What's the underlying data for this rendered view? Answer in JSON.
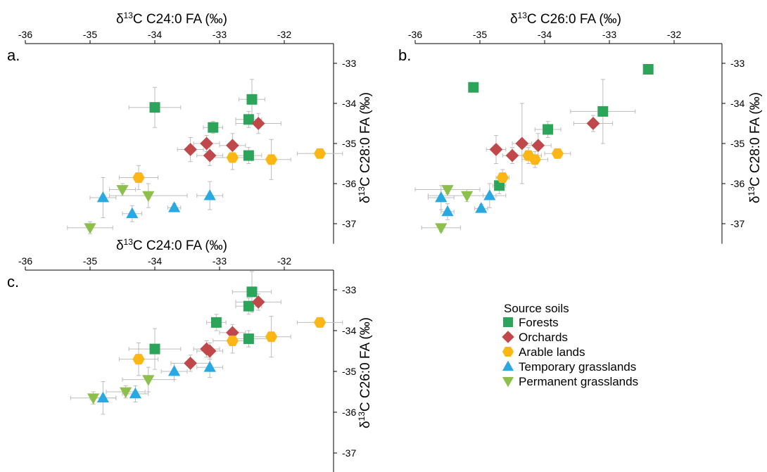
{
  "colors": {
    "Forests": "#2ca55a",
    "Orchards": "#c0484a",
    "Arable lands": "#fcb714",
    "Temporary grasslands": "#29a9e1",
    "Permanent grasslands": "#8dc04a",
    "errorbar": "#bdbdbd",
    "axis": "#000000"
  },
  "legend": {
    "title": "Source soils",
    "items": [
      {
        "label": "Forests",
        "marker": "square"
      },
      {
        "label": "Orchards",
        "marker": "diamond"
      },
      {
        "label": "Arable lands",
        "marker": "hexagon"
      },
      {
        "label": "Temporary grasslands",
        "marker": "triangle-up"
      },
      {
        "label": "Permanent grasslands",
        "marker": "triangle-down"
      }
    ]
  },
  "chart_data": [
    {
      "panel": "a.",
      "type": "scatter",
      "xlabel": "δ13C C24:0 FA (‰)",
      "ylabel": "δ13C C28:0 FA (‰)",
      "xlim": [
        -36,
        -31.1
      ],
      "ylim": [
        -37.5,
        -32.6
      ],
      "xticks": [
        -36,
        -35,
        -34,
        -33,
        -32
      ],
      "yticks": [
        -33,
        -34,
        -35,
        -36,
        -37
      ],
      "x_axis_position": "top",
      "y_axis_position": "right",
      "series": [
        {
          "name": "Forests",
          "points": [
            {
              "x": -34.0,
              "y": -34.1,
              "xerr": 0.4,
              "yerr": 0.5
            },
            {
              "x": -32.5,
              "y": -33.9,
              "xerr": 0.2,
              "yerr": 0.5
            },
            {
              "x": -32.55,
              "y": -34.4,
              "xerr": 0.2,
              "yerr": 0.2
            },
            {
              "x": -33.1,
              "y": -34.6,
              "xerr": 0.15,
              "yerr": 0.15
            },
            {
              "x": -32.55,
              "y": -35.3,
              "xerr": 0.2,
              "yerr": 0.2
            }
          ]
        },
        {
          "name": "Orchards",
          "points": [
            {
              "x": -32.4,
              "y": -34.5,
              "xerr": 0.35,
              "yerr": 0.25
            },
            {
              "x": -33.45,
              "y": -35.15,
              "xerr": 0.2,
              "yerr": 0.3
            },
            {
              "x": -33.2,
              "y": -35.0,
              "xerr": 0.2,
              "yerr": 0.2
            },
            {
              "x": -33.15,
              "y": -35.3,
              "xerr": 0.2,
              "yerr": 0.25
            },
            {
              "x": -32.8,
              "y": -35.05,
              "xerr": 0.2,
              "yerr": 0.3
            }
          ]
        },
        {
          "name": "Arable lands",
          "points": [
            {
              "x": -34.25,
              "y": -35.85,
              "xerr": 0.3,
              "yerr": 0.3
            },
            {
              "x": -32.8,
              "y": -35.35,
              "xerr": 0.3,
              "yerr": 0.3
            },
            {
              "x": -32.2,
              "y": -35.4,
              "xerr": 0.3,
              "yerr": 0.5
            },
            {
              "x": -31.45,
              "y": -35.25,
              "xerr": 0.35,
              "yerr": 0.1
            }
          ]
        },
        {
          "name": "Temporary grasslands",
          "points": [
            {
              "x": -34.8,
              "y": -36.35,
              "xerr": 0.2,
              "yerr": 0.5
            },
            {
              "x": -34.35,
              "y": -36.75,
              "xerr": 0.15,
              "yerr": 0.2
            },
            {
              "x": -33.7,
              "y": -36.6,
              "xerr": 0.1,
              "yerr": 0.1
            },
            {
              "x": -33.15,
              "y": -36.3,
              "xerr": 0.2,
              "yerr": 0.35
            }
          ]
        },
        {
          "name": "Permanent grasslands",
          "points": [
            {
              "x": -35.0,
              "y": -37.1,
              "xerr": 0.35,
              "yerr": 0.15
            },
            {
              "x": -34.5,
              "y": -36.15,
              "xerr": 0.2,
              "yerr": 0.15
            },
            {
              "x": -34.1,
              "y": -36.3,
              "xerr": 0.6,
              "yerr": 0.3
            }
          ]
        }
      ]
    },
    {
      "panel": "b.",
      "type": "scatter",
      "xlabel": "δ13C C26:0 FA (‰)",
      "ylabel": "δ13C C28:0 FA (‰)",
      "xlim": [
        -36,
        -31.1
      ],
      "ylim": [
        -37.5,
        -32.6
      ],
      "xticks": [
        -36,
        -35,
        -34,
        -33,
        -32
      ],
      "yticks": [
        -33,
        -34,
        -35,
        -36,
        -37
      ],
      "x_axis_position": "top",
      "y_axis_position": "right",
      "series": [
        {
          "name": "Forests",
          "points": [
            {
              "x": -35.1,
              "y": -33.6,
              "xerr": 0,
              "yerr": 0
            },
            {
              "x": -32.4,
              "y": -33.15,
              "xerr": 0,
              "yerr": 0
            },
            {
              "x": -33.1,
              "y": -34.2,
              "xerr": 0.5,
              "yerr": 0.8
            },
            {
              "x": -33.95,
              "y": -34.65,
              "xerr": 0.2,
              "yerr": 0.2
            },
            {
              "x": -34.7,
              "y": -36.05,
              "xerr": 0.1,
              "yerr": 0.2
            }
          ]
        },
        {
          "name": "Orchards",
          "points": [
            {
              "x": -33.25,
              "y": -34.5,
              "xerr": 0.3,
              "yerr": 0.2
            },
            {
              "x": -34.75,
              "y": -35.15,
              "xerr": 0.15,
              "yerr": 0.35
            },
            {
              "x": -34.35,
              "y": -35.0,
              "xerr": 0.15,
              "yerr": 1.0
            },
            {
              "x": -34.5,
              "y": -35.3,
              "xerr": 0.15,
              "yerr": 0.2
            },
            {
              "x": -34.1,
              "y": -35.05,
              "xerr": 0.2,
              "yerr": 0.3
            }
          ]
        },
        {
          "name": "Arable lands",
          "points": [
            {
              "x": -34.25,
              "y": -35.3,
              "xerr": 0.2,
              "yerr": 0.2
            },
            {
              "x": -34.15,
              "y": -35.4,
              "xerr": 0.2,
              "yerr": 0.2
            },
            {
              "x": -33.8,
              "y": -35.25,
              "xerr": 0.2,
              "yerr": 0.1
            },
            {
              "x": -34.65,
              "y": -35.85,
              "xerr": 0.1,
              "yerr": 0.2
            }
          ]
        },
        {
          "name": "Temporary grasslands",
          "points": [
            {
              "x": -35.6,
              "y": -36.35,
              "xerr": 0.2,
              "yerr": 0.3
            },
            {
              "x": -35.5,
              "y": -36.7,
              "xerr": 0.1,
              "yerr": 0.2
            },
            {
              "x": -34.85,
              "y": -36.3,
              "xerr": 0.1,
              "yerr": 0.3
            },
            {
              "x": -34.98,
              "y": -36.62,
              "xerr": 0.1,
              "yerr": 0.1
            }
          ]
        },
        {
          "name": "Permanent grasslands",
          "points": [
            {
              "x": -35.6,
              "y": -37.1,
              "xerr": 0.3,
              "yerr": 0.1
            },
            {
              "x": -35.5,
              "y": -36.15,
              "xerr": 0.5,
              "yerr": 0.1
            },
            {
              "x": -35.2,
              "y": -36.3,
              "xerr": 0.6,
              "yerr": 0.15
            }
          ]
        }
      ]
    },
    {
      "panel": "c.",
      "type": "scatter",
      "xlabel": "δ13C C24:0 FA (‰)",
      "ylabel": "δ13C C26:0 FA (‰)",
      "xlim": [
        -36,
        -31.1
      ],
      "ylim": [
        -37.5,
        -32.6
      ],
      "xticks": [
        -36,
        -35,
        -34,
        -33,
        -32
      ],
      "yticks": [
        -33,
        -34,
        -35,
        -36,
        -37
      ],
      "x_axis_position": "top",
      "y_axis_position": "right",
      "series": [
        {
          "name": "Forests",
          "points": [
            {
              "x": -32.5,
              "y": -33.05,
              "xerr": 0.3,
              "yerr": 0.5
            },
            {
              "x": -32.55,
              "y": -33.4,
              "xerr": 0.2,
              "yerr": 0.2
            },
            {
              "x": -33.05,
              "y": -33.8,
              "xerr": 0.15,
              "yerr": 0.2
            },
            {
              "x": -34.0,
              "y": -34.45,
              "xerr": 0.4,
              "yerr": 0.5
            },
            {
              "x": -32.55,
              "y": -34.2,
              "xerr": 0.3,
              "yerr": 0.2
            }
          ]
        },
        {
          "name": "Orchards",
          "points": [
            {
              "x": -32.4,
              "y": -33.3,
              "xerr": 0.35,
              "yerr": 0.2
            },
            {
              "x": -33.2,
              "y": -34.45,
              "xerr": 0.2,
              "yerr": 0.2
            },
            {
              "x": -33.15,
              "y": -34.5,
              "xerr": 0.2,
              "yerr": 0.2
            },
            {
              "x": -32.8,
              "y": -34.05,
              "xerr": 0.2,
              "yerr": 0.2
            },
            {
              "x": -33.45,
              "y": -34.8,
              "xerr": 0.3,
              "yerr": 0.2
            }
          ]
        },
        {
          "name": "Arable lands",
          "points": [
            {
              "x": -34.25,
              "y": -34.7,
              "xerr": 0.3,
              "yerr": 0.4
            },
            {
              "x": -32.8,
              "y": -34.25,
              "xerr": 0.3,
              "yerr": 0.3
            },
            {
              "x": -32.2,
              "y": -34.15,
              "xerr": 0.3,
              "yerr": 0.5
            },
            {
              "x": -31.45,
              "y": -33.8,
              "xerr": 0.35,
              "yerr": 0.1
            }
          ]
        },
        {
          "name": "Temporary grasslands",
          "points": [
            {
              "x": -34.8,
              "y": -35.65,
              "xerr": 0.2,
              "yerr": 0.4
            },
            {
              "x": -34.3,
              "y": -35.55,
              "xerr": 0.2,
              "yerr": 0.2
            },
            {
              "x": -33.7,
              "y": -35.0,
              "xerr": 0.2,
              "yerr": 0.2
            },
            {
              "x": -33.15,
              "y": -34.9,
              "xerr": 0.2,
              "yerr": 0.25
            }
          ]
        },
        {
          "name": "Permanent grasslands",
          "points": [
            {
              "x": -34.95,
              "y": -35.65,
              "xerr": 0.35,
              "yerr": 0.15
            },
            {
              "x": -34.45,
              "y": -35.5,
              "xerr": 0.3,
              "yerr": 0.15
            },
            {
              "x": -34.1,
              "y": -35.2,
              "xerr": 0.4,
              "yerr": 0.3
            }
          ]
        }
      ]
    }
  ]
}
